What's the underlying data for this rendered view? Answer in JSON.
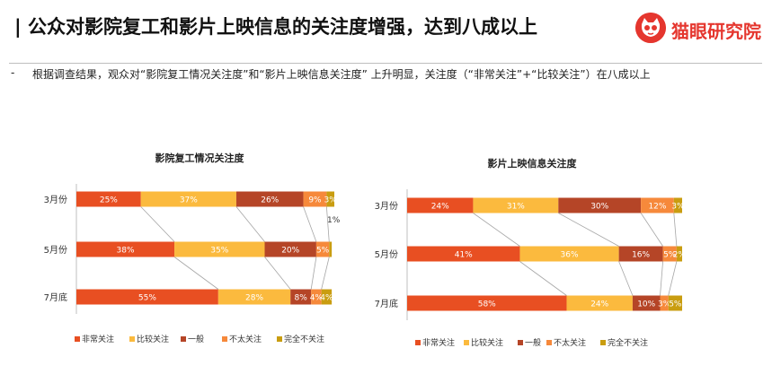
{
  "header": {
    "title": "| 公众对影院复工和影片上映信息的关注度增强，达到八成以上",
    "logo_text": "猫眼研究院"
  },
  "bullet": {
    "dash": "-",
    "text": "根据调查结果，观众对“影院复工情况关注度”和“影片上映信息关注度” 上升明显，关注度（“非常关注”+“比较关注”）在八成以上"
  },
  "colors": {
    "series": [
      "#e84f22",
      "#fbba3e",
      "#b54527",
      "#f6893b",
      "#c99d10"
    ],
    "brand": "#e5362e"
  },
  "chart_data": [
    {
      "type": "bar",
      "orientation": "horizontal-stacked-100",
      "title": "影院复工情况关注度",
      "categories": [
        "3月份",
        "5月份",
        "7月底"
      ],
      "series": [
        {
          "name": "非常关注",
          "values": [
            25,
            38,
            55
          ]
        },
        {
          "name": "比较关注",
          "values": [
            37,
            35,
            28
          ]
        },
        {
          "name": "一般",
          "values": [
            26,
            20,
            8
          ]
        },
        {
          "name": "不太关注",
          "values": [
            9,
            5,
            4
          ]
        },
        {
          "name": "完全不关注",
          "values": [
            3,
            1,
            4
          ]
        }
      ],
      "value_labels": [
        [
          "25%",
          "37%",
          "26%",
          "9%",
          "3%"
        ],
        [
          "38%",
          "35%",
          "20%",
          "5%",
          ""
        ],
        [
          "55%",
          "28%",
          "8%",
          "4%",
          "4%"
        ]
      ],
      "annotations": [
        "1%"
      ],
      "legend": "bottom",
      "xlim": [
        0,
        100
      ]
    },
    {
      "type": "bar",
      "orientation": "horizontal-stacked-100",
      "title": "影片上映信息关注度",
      "categories": [
        "3月份",
        "5月份",
        "7月底"
      ],
      "series": [
        {
          "name": "非常关注",
          "values": [
            24,
            41,
            58
          ]
        },
        {
          "name": "比较关注",
          "values": [
            31,
            36,
            24
          ]
        },
        {
          "name": "一般",
          "values": [
            30,
            16,
            10
          ]
        },
        {
          "name": "不太关注",
          "values": [
            12,
            5,
            3
          ]
        },
        {
          "name": "完全不关注",
          "values": [
            3,
            2,
            5
          ]
        }
      ],
      "value_labels": [
        [
          "24%",
          "31%",
          "30%",
          "12%",
          "3%"
        ],
        [
          "41%",
          "36%",
          "16%",
          "5%",
          "2%"
        ],
        [
          "58%",
          "24%",
          "10%",
          "3%",
          "5%"
        ]
      ],
      "legend": "bottom",
      "xlim": [
        0,
        100
      ]
    }
  ]
}
